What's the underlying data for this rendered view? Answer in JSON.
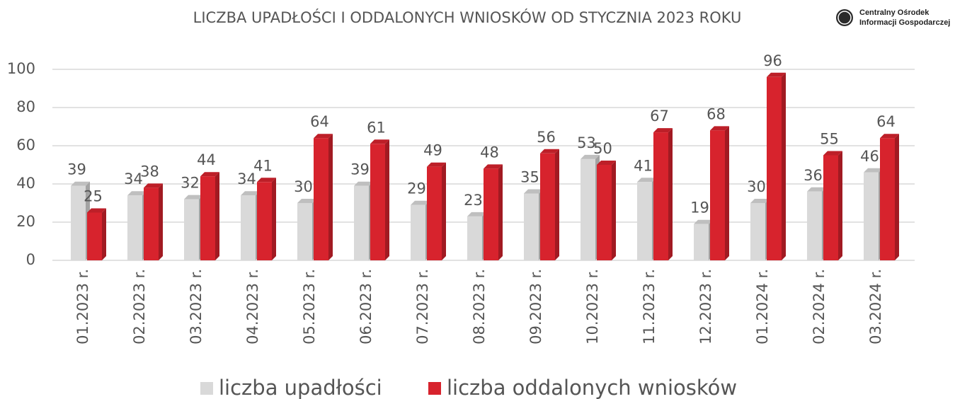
{
  "chart_data": {
    "type": "bar3d",
    "title": "LICZBA UPADŁOŚCI I ODDALONYCH WNIOSKÓW OD STYCZNIA 2023 ROKU",
    "logo_lines": [
      "Centralny Ośrodek",
      "Informacji Gospodarczej"
    ],
    "categories": [
      "01.2023 r.",
      "02.2023 r.",
      "03.2023 r.",
      "04.2023 r.",
      "05.2023 r.",
      "06.2023 r.",
      "07.2023 r.",
      "08.2023 r.",
      "09.2023 r.",
      "10.2023 r.",
      "11.2023 r.",
      "12.2023 r.",
      "01.2024 r.",
      "02.2024 r.",
      "03.2024 r."
    ],
    "series": [
      {
        "name": "liczba upadłości",
        "color": "#d9d9d9",
        "values": [
          39,
          34,
          32,
          34,
          30,
          39,
          29,
          23,
          35,
          53,
          41,
          19,
          30,
          36,
          46
        ]
      },
      {
        "name": "liczba oddalonych wniosków",
        "color": "#d7232d",
        "values": [
          25,
          38,
          44,
          41,
          64,
          61,
          49,
          48,
          56,
          50,
          67,
          68,
          96,
          55,
          64
        ]
      }
    ],
    "ylim": [
      0,
      100
    ],
    "yticks": [
      0,
      20,
      40,
      60,
      80,
      100
    ],
    "grid": true,
    "legend": "bottom"
  }
}
